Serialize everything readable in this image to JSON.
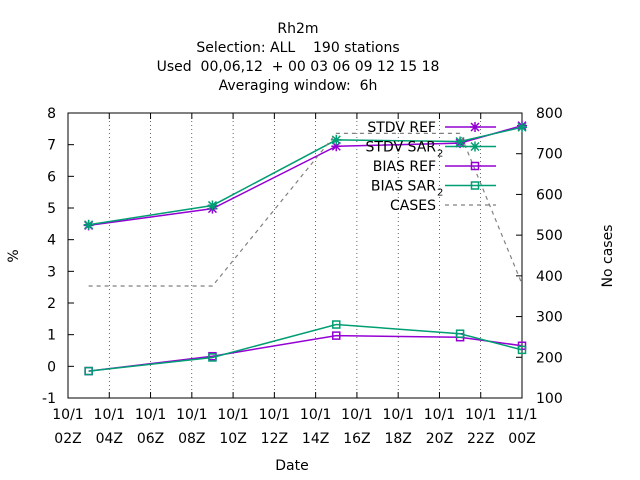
{
  "header": {
    "title_lines": [
      "Rh2m",
      "Selection: ALL    190 stations",
      "Used  00,06,12  + 00 03 06 09 12 15 18",
      "Averaging window:  6h"
    ]
  },
  "chart_data": {
    "type": "line",
    "xlabel": "Date",
    "ylabel": "%",
    "y2label": "No cases",
    "ylim": [
      -1,
      8
    ],
    "y2lim": [
      100,
      800
    ],
    "xlim": [
      "10/11 02Z",
      "11/11 00Z"
    ],
    "yticks": [
      "-1",
      "0",
      "1",
      "2",
      "3",
      "4",
      "5",
      "6",
      "7",
      "8"
    ],
    "y2ticks": [
      "100",
      "200",
      "300",
      "400",
      "500",
      "600",
      "700",
      "800"
    ],
    "xticks": [
      {
        "date": "10/1",
        "time": "02Z"
      },
      {
        "date": "10/1",
        "time": "04Z"
      },
      {
        "date": "10/1",
        "time": "06Z"
      },
      {
        "date": "10/1",
        "time": "08Z"
      },
      {
        "date": "10/1",
        "time": "10Z"
      },
      {
        "date": "10/1",
        "time": "12Z"
      },
      {
        "date": "10/1",
        "time": "14Z"
      },
      {
        "date": "10/1",
        "time": "16Z"
      },
      {
        "date": "10/1",
        "time": "18Z"
      },
      {
        "date": "10/1",
        "time": "20Z"
      },
      {
        "date": "10/1",
        "time": "22Z"
      },
      {
        "date": "11/1",
        "time": "00Z"
      }
    ],
    "x": [
      "10/11 03Z",
      "10/11 09Z",
      "10/11 15Z",
      "10/11 21Z",
      "11/11 00Z"
    ],
    "grid": true,
    "legend_position": "top-right",
    "series": [
      {
        "name": "STDV REF",
        "sub": "",
        "color": "#9400d3",
        "marker": "star",
        "dash": false,
        "axis": "y1",
        "values": [
          4.45,
          4.98,
          6.95,
          7.05,
          7.6
        ]
      },
      {
        "name": "STDV SAR",
        "sub": "2",
        "color": "#009e73",
        "marker": "star",
        "dash": false,
        "axis": "y1",
        "values": [
          4.47,
          5.08,
          7.15,
          7.1,
          7.55
        ]
      },
      {
        "name": "BIAS REF",
        "sub": "",
        "color": "#9400d3",
        "marker": "square",
        "dash": false,
        "axis": "y1",
        "values": [
          -0.15,
          0.32,
          0.97,
          0.92,
          0.65
        ]
      },
      {
        "name": "BIAS SAR",
        "sub": "2",
        "color": "#009e73",
        "marker": "square",
        "dash": false,
        "axis": "y1",
        "values": [
          -0.15,
          0.28,
          1.32,
          1.03,
          0.52
        ]
      },
      {
        "name": "CASES",
        "sub": "",
        "color": "#808080",
        "marker": "none",
        "dash": true,
        "axis": "y2",
        "values": [
          375,
          375,
          750,
          750,
          380
        ]
      }
    ]
  }
}
